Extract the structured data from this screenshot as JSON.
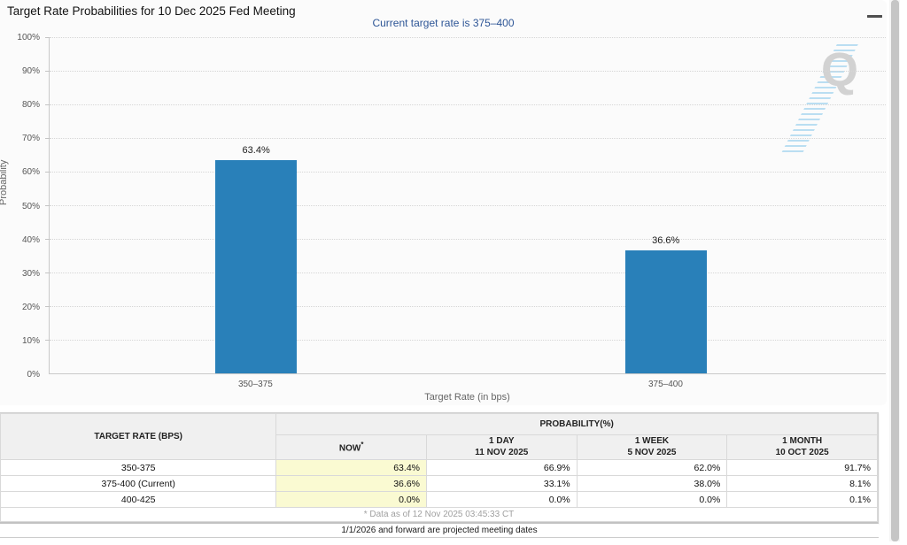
{
  "page": {
    "title": "Target Rate Probabilities for 10 Dec 2025 Fed Meeting",
    "menu_icon": "hamburger-menu",
    "watermark_letter": "Q",
    "footer_note": "1/1/2026 and forward are projected meeting dates"
  },
  "chart": {
    "subtitle": "Current target rate is 375–400",
    "ylabel": "Probability",
    "xlabel": "Target Rate (in bps)",
    "yticks": [
      "100%",
      "90%",
      "80%",
      "70%",
      "60%",
      "50%",
      "40%",
      "30%",
      "20%",
      "10%",
      "0%"
    ],
    "bars": [
      {
        "category": "350–375",
        "label": "63.4%"
      },
      {
        "category": "375–400",
        "label": "36.6%"
      }
    ]
  },
  "chart_data": {
    "type": "bar",
    "title": "Target Rate Probabilities for 10 Dec 2025 Fed Meeting",
    "subtitle": "Current target rate is 375–400",
    "categories": [
      "350–375",
      "375–400"
    ],
    "values": [
      63.4,
      36.6
    ],
    "value_labels": [
      "63.4%",
      "36.6%"
    ],
    "xlabel": "Target Rate (in bps)",
    "ylabel": "Probability",
    "ylim": [
      0,
      100
    ],
    "ytick_step": 10,
    "grid": true,
    "legend": false,
    "bar_color": "#2980b9"
  },
  "table": {
    "col_header": "TARGET RATE (BPS)",
    "group_header": "PROBABILITY(%)",
    "now_label": "NOW",
    "now_asterisk": "*",
    "subheaders": [
      {
        "line1": "1 DAY",
        "line2": "11 NOV 2025"
      },
      {
        "line1": "1 WEEK",
        "line2": "5 NOV 2025"
      },
      {
        "line1": "1 MONTH",
        "line2": "10 OCT 2025"
      }
    ],
    "rows": [
      {
        "rate": "350-375",
        "now": "63.4%",
        "day": "66.9%",
        "week": "62.0%",
        "month": "91.7%"
      },
      {
        "rate": "375-400 (Current)",
        "now": "36.6%",
        "day": "33.1%",
        "week": "38.0%",
        "month": "8.1%"
      },
      {
        "rate": "400-425",
        "now": "0.0%",
        "day": "0.0%",
        "week": "0.0%",
        "month": "0.1%"
      }
    ],
    "footnote": "* Data as of 12 Nov 2025 03:45:33 CT"
  },
  "colors": {
    "bar": "#2980b9",
    "subtitle_text": "#2d5596",
    "now_column_highlight": "#fafad2",
    "header_background": "#f0f0f0"
  }
}
